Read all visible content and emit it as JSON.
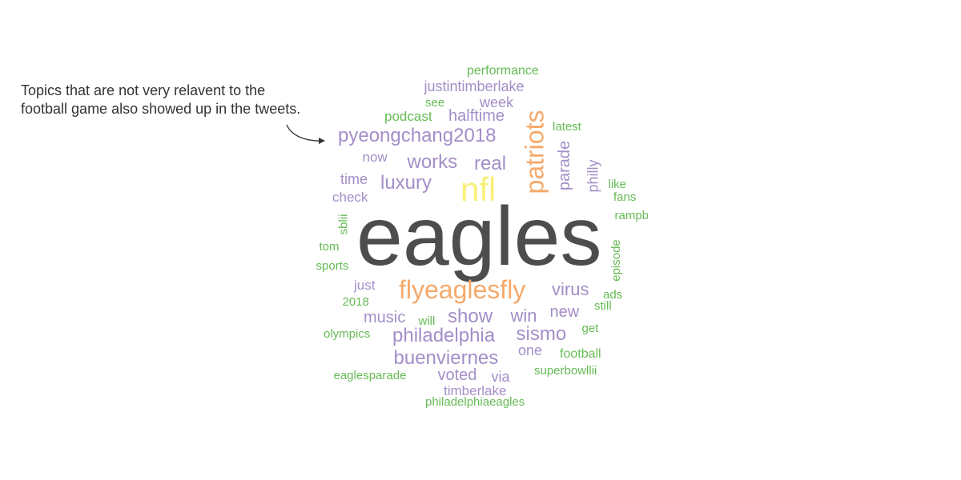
{
  "annotation": {
    "text": "Topics that are not very relavent to the\nfootball game also showed up in the tweets."
  },
  "palette": {
    "gray": "#4d4d4d",
    "purple": "#a38ec8",
    "green": "#66bb55",
    "orange": "#f5a96b",
    "yellow": "#f8f07a"
  },
  "wordcloud": {
    "words": [
      {
        "text": "eagles",
        "color": "gray"
      },
      {
        "text": "nfl",
        "color": "yellow"
      },
      {
        "text": "flyeaglesfly",
        "color": "orange"
      },
      {
        "text": "patriots",
        "color": "orange"
      },
      {
        "text": "pyeongchang2018",
        "color": "purple"
      },
      {
        "text": "works",
        "color": "purple"
      },
      {
        "text": "real",
        "color": "purple"
      },
      {
        "text": "luxury",
        "color": "purple"
      },
      {
        "text": "halftime",
        "color": "purple"
      },
      {
        "text": "justintimberlake",
        "color": "purple"
      },
      {
        "text": "week",
        "color": "purple"
      },
      {
        "text": "see",
        "color": "green"
      },
      {
        "text": "podcast",
        "color": "green"
      },
      {
        "text": "performance",
        "color": "green"
      },
      {
        "text": "latest",
        "color": "green"
      },
      {
        "text": "parade",
        "color": "purple"
      },
      {
        "text": "philly",
        "color": "purple"
      },
      {
        "text": "like",
        "color": "green"
      },
      {
        "text": "fans",
        "color": "green"
      },
      {
        "text": "rampb",
        "color": "green"
      },
      {
        "text": "now",
        "color": "purple"
      },
      {
        "text": "time",
        "color": "purple"
      },
      {
        "text": "check",
        "color": "purple"
      },
      {
        "text": "sblii",
        "color": "green"
      },
      {
        "text": "tom",
        "color": "green"
      },
      {
        "text": "sports",
        "color": "green"
      },
      {
        "text": "episode",
        "color": "green"
      },
      {
        "text": "just",
        "color": "purple"
      },
      {
        "text": "2018",
        "color": "green"
      },
      {
        "text": "virus",
        "color": "purple"
      },
      {
        "text": "ads",
        "color": "green"
      },
      {
        "text": "still",
        "color": "green"
      },
      {
        "text": "show",
        "color": "purple"
      },
      {
        "text": "music",
        "color": "purple"
      },
      {
        "text": "will",
        "color": "green"
      },
      {
        "text": "win",
        "color": "purple"
      },
      {
        "text": "new",
        "color": "purple"
      },
      {
        "text": "get",
        "color": "green"
      },
      {
        "text": "olympics",
        "color": "green"
      },
      {
        "text": "philadelphia",
        "color": "purple"
      },
      {
        "text": "sismo",
        "color": "purple"
      },
      {
        "text": "one",
        "color": "purple"
      },
      {
        "text": "football",
        "color": "green"
      },
      {
        "text": "buenviernes",
        "color": "purple"
      },
      {
        "text": "superbowllii",
        "color": "green"
      },
      {
        "text": "eaglesparade",
        "color": "green"
      },
      {
        "text": "voted",
        "color": "purple"
      },
      {
        "text": "via",
        "color": "purple"
      },
      {
        "text": "timberlake",
        "color": "purple"
      },
      {
        "text": "philadelphiaeagles",
        "color": "green"
      }
    ]
  }
}
